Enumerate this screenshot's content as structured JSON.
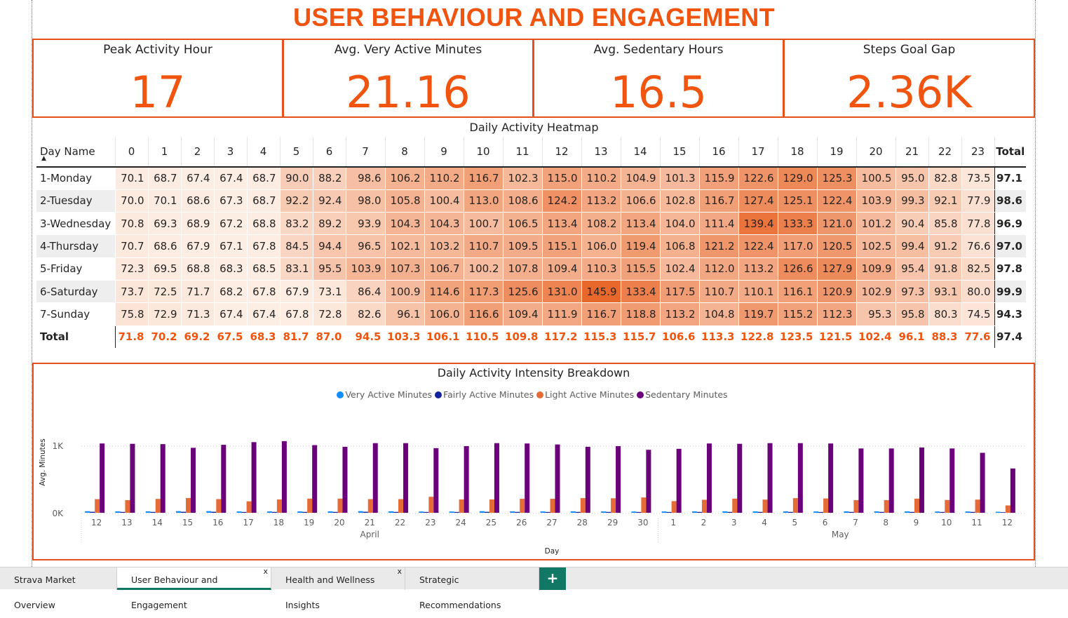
{
  "page_title": "USER BEHAVIOUR AND ENGAGEMENT",
  "kpis": [
    {
      "label": "Peak Activity Hour",
      "value": "17"
    },
    {
      "label": "Avg. Very Active Minutes",
      "value": "21.16"
    },
    {
      "label": "Avg. Sedentary Hours",
      "value": "16.5"
    },
    {
      "label": "Steps Goal Gap",
      "value": "2.36K"
    }
  ],
  "heatmap": {
    "title": "Daily Activity Heatmap",
    "row_header": "Day Name",
    "hours": [
      "0",
      "1",
      "2",
      "3",
      "4",
      "5",
      "6",
      "7",
      "8",
      "9",
      "10",
      "11",
      "12",
      "13",
      "14",
      "15",
      "16",
      "17",
      "18",
      "19",
      "20",
      "21",
      "22",
      "23"
    ],
    "total_label": "Total",
    "rows": [
      {
        "day": "1-Monday",
        "values": [
          "70.1",
          "68.7",
          "67.4",
          "67.4",
          "68.7",
          "90.0",
          "88.2",
          "98.6",
          "106.2",
          "110.2",
          "116.7",
          "102.3",
          "115.0",
          "110.2",
          "104.9",
          "101.3",
          "115.9",
          "122.6",
          "129.0",
          "125.3",
          "100.5",
          "95.0",
          "82.8",
          "73.5"
        ],
        "total": "97.1"
      },
      {
        "day": "2-Tuesday",
        "values": [
          "70.0",
          "70.1",
          "68.6",
          "67.3",
          "68.7",
          "92.2",
          "92.4",
          "98.0",
          "105.8",
          "100.4",
          "113.0",
          "108.6",
          "124.2",
          "113.2",
          "106.6",
          "102.8",
          "116.7",
          "127.4",
          "125.1",
          "122.4",
          "103.9",
          "99.3",
          "92.1",
          "77.9"
        ],
        "total": "98.6"
      },
      {
        "day": "3-Wednesday",
        "values": [
          "70.8",
          "69.3",
          "68.9",
          "67.2",
          "68.8",
          "83.2",
          "89.2",
          "93.9",
          "104.3",
          "104.3",
          "100.7",
          "106.5",
          "113.4",
          "108.2",
          "113.4",
          "104.0",
          "111.4",
          "139.4",
          "133.3",
          "121.0",
          "101.2",
          "90.4",
          "85.8",
          "77.8"
        ],
        "total": "96.9"
      },
      {
        "day": "4-Thursday",
        "values": [
          "70.7",
          "68.6",
          "67.9",
          "67.1",
          "67.8",
          "84.5",
          "94.4",
          "96.5",
          "102.1",
          "103.2",
          "110.7",
          "109.5",
          "115.1",
          "106.0",
          "119.4",
          "106.8",
          "121.2",
          "122.4",
          "117.0",
          "120.5",
          "102.5",
          "99.4",
          "91.2",
          "76.6"
        ],
        "total": "97.0"
      },
      {
        "day": "5-Friday",
        "values": [
          "72.3",
          "69.5",
          "68.8",
          "68.3",
          "68.5",
          "83.1",
          "95.5",
          "103.9",
          "107.3",
          "106.7",
          "100.2",
          "107.8",
          "109.4",
          "110.3",
          "115.5",
          "102.4",
          "112.0",
          "113.2",
          "126.6",
          "127.9",
          "109.9",
          "95.4",
          "91.8",
          "82.5"
        ],
        "total": "97.8"
      },
      {
        "day": "6-Saturday",
        "values": [
          "73.7",
          "72.5",
          "71.7",
          "68.2",
          "67.8",
          "67.9",
          "73.1",
          "86.4",
          "100.9",
          "114.6",
          "117.3",
          "125.6",
          "131.0",
          "145.9",
          "133.4",
          "117.5",
          "110.7",
          "110.1",
          "116.1",
          "120.9",
          "102.9",
          "97.3",
          "93.1",
          "80.0"
        ],
        "total": "99.9"
      },
      {
        "day": "7-Sunday",
        "values": [
          "75.8",
          "72.9",
          "71.3",
          "67.4",
          "67.4",
          "67.8",
          "72.8",
          "82.6",
          "96.1",
          "106.0",
          "116.6",
          "109.4",
          "111.9",
          "116.7",
          "118.8",
          "113.2",
          "104.8",
          "119.7",
          "115.2",
          "112.3",
          "95.3",
          "95.8",
          "80.3",
          "74.5"
        ],
        "total": "94.3"
      }
    ],
    "totals_row": {
      "label": "Total",
      "values": [
        "71.8",
        "70.2",
        "69.2",
        "67.5",
        "68.3",
        "81.7",
        "87.0",
        "94.5",
        "103.3",
        "106.1",
        "110.5",
        "109.8",
        "117.2",
        "115.3",
        "115.7",
        "106.6",
        "113.3",
        "122.8",
        "123.5",
        "121.5",
        "102.4",
        "96.1",
        "88.3",
        "77.6"
      ],
      "total": "97.4"
    }
  },
  "chart_data": {
    "type": "bar",
    "title": "Daily Activity Intensity Breakdown",
    "xlabel": "Day",
    "ylabel": "Avg. Minutes",
    "yticks": [
      "0K",
      "1K"
    ],
    "ylim": [
      0,
      1150
    ],
    "legend_position": "top-center",
    "grid": true,
    "categories": [
      "12",
      "13",
      "14",
      "15",
      "16",
      "17",
      "18",
      "19",
      "20",
      "21",
      "22",
      "23",
      "24",
      "25",
      "26",
      "27",
      "28",
      "29",
      "30",
      "1",
      "2",
      "3",
      "4",
      "5",
      "6",
      "7",
      "8",
      "9",
      "10",
      "11",
      "12"
    ],
    "month_groups": [
      {
        "label": "April",
        "count": 19
      },
      {
        "label": "May",
        "count": 12
      }
    ],
    "series": [
      {
        "name": "Very Active Minutes",
        "color": "#118dff",
        "values": [
          24,
          22,
          22,
          25,
          25,
          20,
          21,
          21,
          22,
          25,
          22,
          19,
          19,
          24,
          21,
          20,
          21,
          20,
          19,
          20,
          21,
          21,
          21,
          21,
          20,
          22,
          21,
          21,
          19,
          20,
          15
        ]
      },
      {
        "name": "Fairly Active Minutes",
        "color": "#12239e",
        "values": [
          15,
          13,
          13,
          15,
          15,
          12,
          13,
          13,
          13,
          15,
          13,
          12,
          12,
          14,
          13,
          12,
          13,
          13,
          12,
          12,
          13,
          13,
          13,
          13,
          12,
          13,
          13,
          13,
          12,
          13,
          9
        ]
      },
      {
        "name": "Light Active Minutes",
        "color": "#e66c37",
        "values": [
          205,
          190,
          208,
          222,
          205,
          172,
          200,
          212,
          212,
          205,
          205,
          240,
          200,
          200,
          210,
          210,
          220,
          218,
          230,
          175,
          195,
          212,
          198,
          220,
          215,
          190,
          190,
          212,
          192,
          198,
          110
        ]
      },
      {
        "name": "Sedentary Minutes",
        "color": "#6b007b",
        "values": [
          1040,
          1035,
          1030,
          975,
          1020,
          1060,
          1075,
          1015,
          990,
          1045,
          1045,
          970,
          1000,
          1045,
          1040,
          1025,
          990,
          1000,
          945,
          960,
          1040,
          1035,
          1045,
          1045,
          1040,
          965,
          965,
          980,
          965,
          900,
          665
        ]
      }
    ]
  },
  "tabs": [
    {
      "label": "Strava Market Overview",
      "active": false,
      "closable": false
    },
    {
      "label": "User Behaviour and Engagement",
      "active": true,
      "closable": true
    },
    {
      "label": "Health and Wellness Insights",
      "active": false,
      "closable": true
    },
    {
      "label": "Strategic Recommendations",
      "active": false,
      "closable": false
    }
  ],
  "add_tab_label": "+",
  "close_glyph": "x",
  "sort_glyph": "▲"
}
